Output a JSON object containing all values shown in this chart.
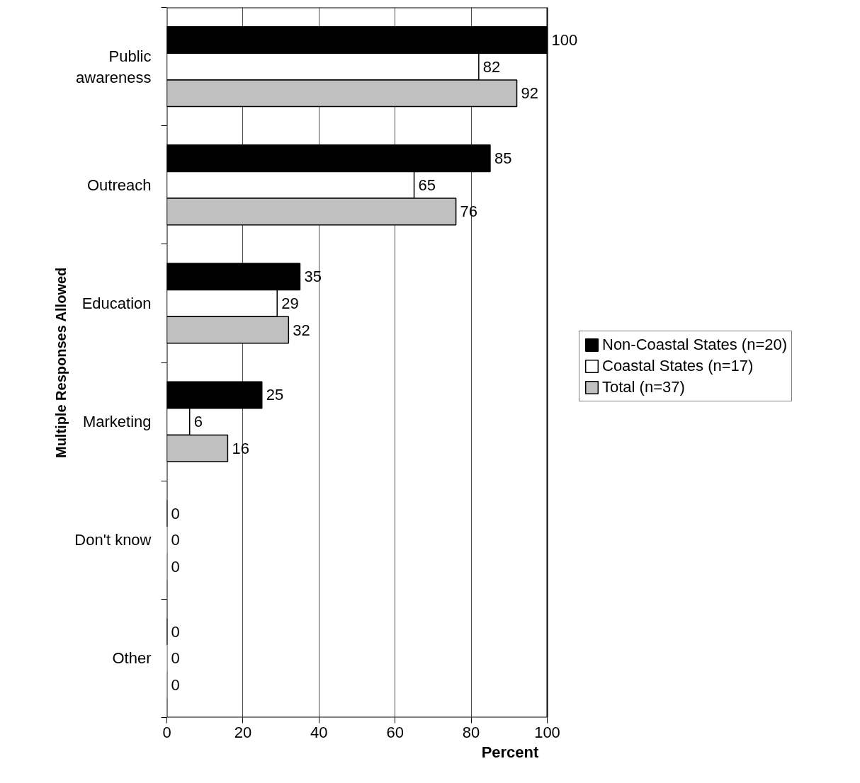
{
  "chart_data": {
    "type": "bar",
    "orientation": "horizontal",
    "xlabel": "Percent",
    "ylabel": "Multiple Responses Allowed",
    "categories": [
      "Public\nawareness",
      "Outreach",
      "Education",
      "Marketing",
      "Don't know",
      "Other"
    ],
    "series": [
      {
        "name": "Non-Coastal States (n=20)",
        "color": "#000000",
        "values": [
          100,
          85,
          35,
          25,
          0,
          0
        ]
      },
      {
        "name": "Coastal States (n=17)",
        "color": "#ffffff",
        "values": [
          82,
          65,
          29,
          6,
          0,
          0
        ]
      },
      {
        "name": "Total (n=37)",
        "color": "#c0c0c0",
        "values": [
          92,
          76,
          32,
          16,
          0,
          0
        ]
      }
    ],
    "xlim": [
      0,
      100
    ],
    "xticks": [
      0,
      20,
      40,
      60,
      80,
      100
    ],
    "grid": "x",
    "legend": "right",
    "data_labels": true
  }
}
